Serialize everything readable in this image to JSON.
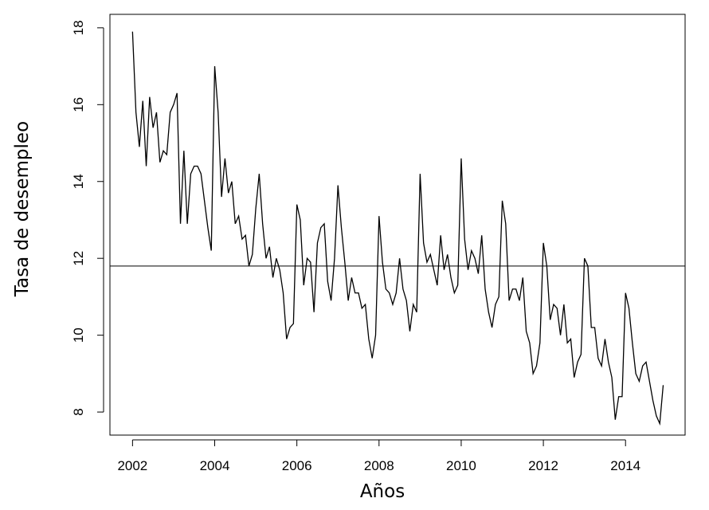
{
  "chart_data": {
    "type": "line",
    "title": "",
    "xlabel": "Años",
    "ylabel": "Tasa de desempleo",
    "xlim": [
      2001.45,
      2015.45
    ],
    "ylim": [
      7.4,
      18.35
    ],
    "x_ticks": [
      2002,
      2004,
      2006,
      2008,
      2010,
      2012,
      2014
    ],
    "x_tick_labels": [
      "2002",
      "2004",
      "2006",
      "2008",
      "2010",
      "2012",
      "2014"
    ],
    "y_ticks": [
      8,
      10,
      12,
      14,
      16,
      18
    ],
    "y_tick_labels": [
      "8",
      "10",
      "12",
      "14",
      "16",
      "18"
    ],
    "grid": false,
    "start": "2002-01",
    "frequency": "monthly",
    "hline": {
      "y": 11.8
    },
    "series": [
      {
        "values": [
          17.9,
          15.8,
          14.9,
          16.1,
          14.4,
          16.2,
          15.4,
          15.8,
          14.5,
          14.8,
          14.7,
          15.8,
          16.0,
          16.3,
          12.9,
          14.8,
          12.9,
          14.2,
          14.4,
          14.4,
          14.2,
          13.5,
          12.8,
          12.2,
          17.0,
          15.8,
          13.6,
          14.6,
          13.7,
          14.0,
          12.9,
          13.1,
          12.5,
          12.6,
          11.8,
          12.1,
          13.3,
          14.2,
          12.9,
          12.0,
          12.3,
          11.5,
          12.0,
          11.7,
          11.1,
          9.9,
          10.2,
          10.3,
          13.4,
          13.0,
          11.3,
          12.0,
          11.9,
          10.6,
          12.4,
          12.8,
          12.9,
          11.4,
          10.9,
          12.0,
          13.9,
          12.8,
          11.9,
          10.9,
          11.5,
          11.1,
          11.1,
          10.7,
          10.8,
          9.9,
          9.4,
          10.0,
          13.1,
          11.9,
          11.2,
          11.1,
          10.8,
          11.1,
          12.0,
          11.2,
          10.9,
          10.1,
          10.8,
          10.6,
          14.2,
          12.4,
          11.9,
          12.1,
          11.7,
          11.3,
          12.6,
          11.7,
          12.1,
          11.5,
          11.1,
          11.3,
          14.6,
          12.5,
          11.7,
          12.2,
          12.0,
          11.6,
          12.6,
          11.2,
          10.6,
          10.2,
          10.8,
          11.0,
          13.5,
          12.9,
          10.9,
          11.2,
          11.2,
          10.9,
          11.5,
          10.1,
          9.8,
          9.0,
          9.2,
          9.8,
          12.4,
          11.8,
          10.4,
          10.8,
          10.7,
          10.0,
          10.8,
          9.8,
          9.9,
          8.9,
          9.3,
          9.5,
          12.0,
          11.8,
          10.2,
          10.2,
          9.4,
          9.2,
          9.9,
          9.3,
          8.9,
          7.8,
          8.4,
          8.4,
          11.1,
          10.7,
          9.8,
          9.0,
          8.8,
          9.2,
          9.3,
          8.8,
          8.3,
          7.9,
          7.7,
          8.7
        ]
      }
    ]
  }
}
